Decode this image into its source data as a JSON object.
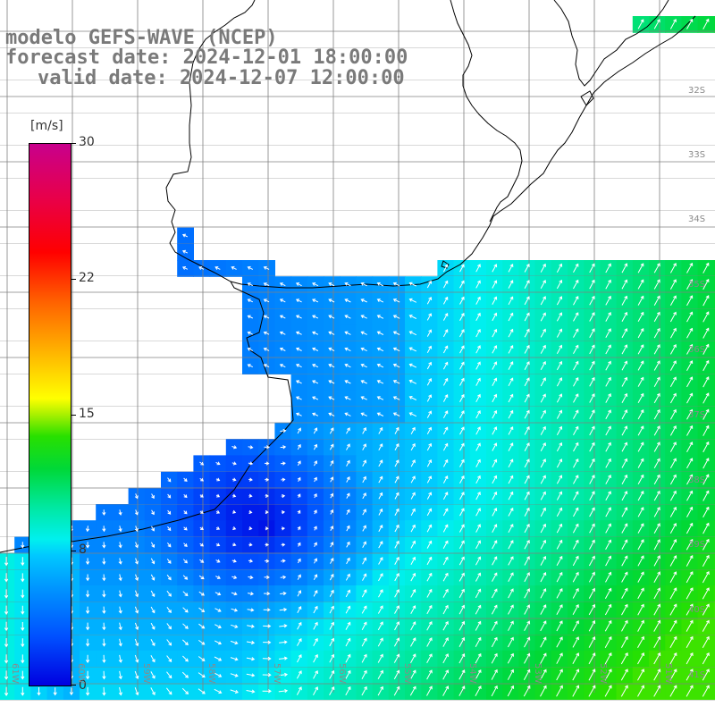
{
  "header": {
    "line1": "modelo GEFS-WAVE (NCEP)",
    "line2": "forecast date: 2024-12-01 18:00:00",
    "line3": "valid date: 2024-12-07 12:00:00"
  },
  "colorbar": {
    "unit": "[m/s]",
    "ticks": [
      "30",
      "22",
      "15",
      "8",
      "0"
    ],
    "tick_values": [
      30,
      22,
      15,
      8,
      0
    ],
    "colors": [
      "#0000e0",
      "#0095ff",
      "#00f0ee",
      "#00d838",
      "#ffff00",
      "#ff6000",
      "#ff0000",
      "#c8008c"
    ]
  },
  "map": {
    "lat_labels": [
      "32S",
      "33S",
      "34S",
      "35S",
      "36S",
      "37S",
      "38S",
      "39S",
      "40S",
      "41S"
    ],
    "lon_labels": [
      "61W",
      "60W",
      "59W",
      "58W",
      "57W",
      "56W",
      "55W",
      "54W",
      "53W",
      "52W",
      "51W"
    ],
    "land_color": "#ffffff",
    "grid_color": "#808080",
    "wind_direction": "from south-west in open ocean, north-westward in estuary"
  }
}
